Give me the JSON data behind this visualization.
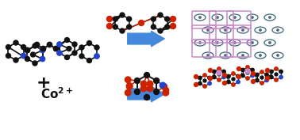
{
  "background_color": "#ffffff",
  "arrow_color": "#4488dd",
  "node_black": "#111111",
  "node_blue": "#2244cc",
  "node_red": "#cc2200",
  "crystal_purple": "#cc88cc",
  "crystal_teal": "#336677",
  "plus_fontsize": 16,
  "co_fontsize": 10
}
